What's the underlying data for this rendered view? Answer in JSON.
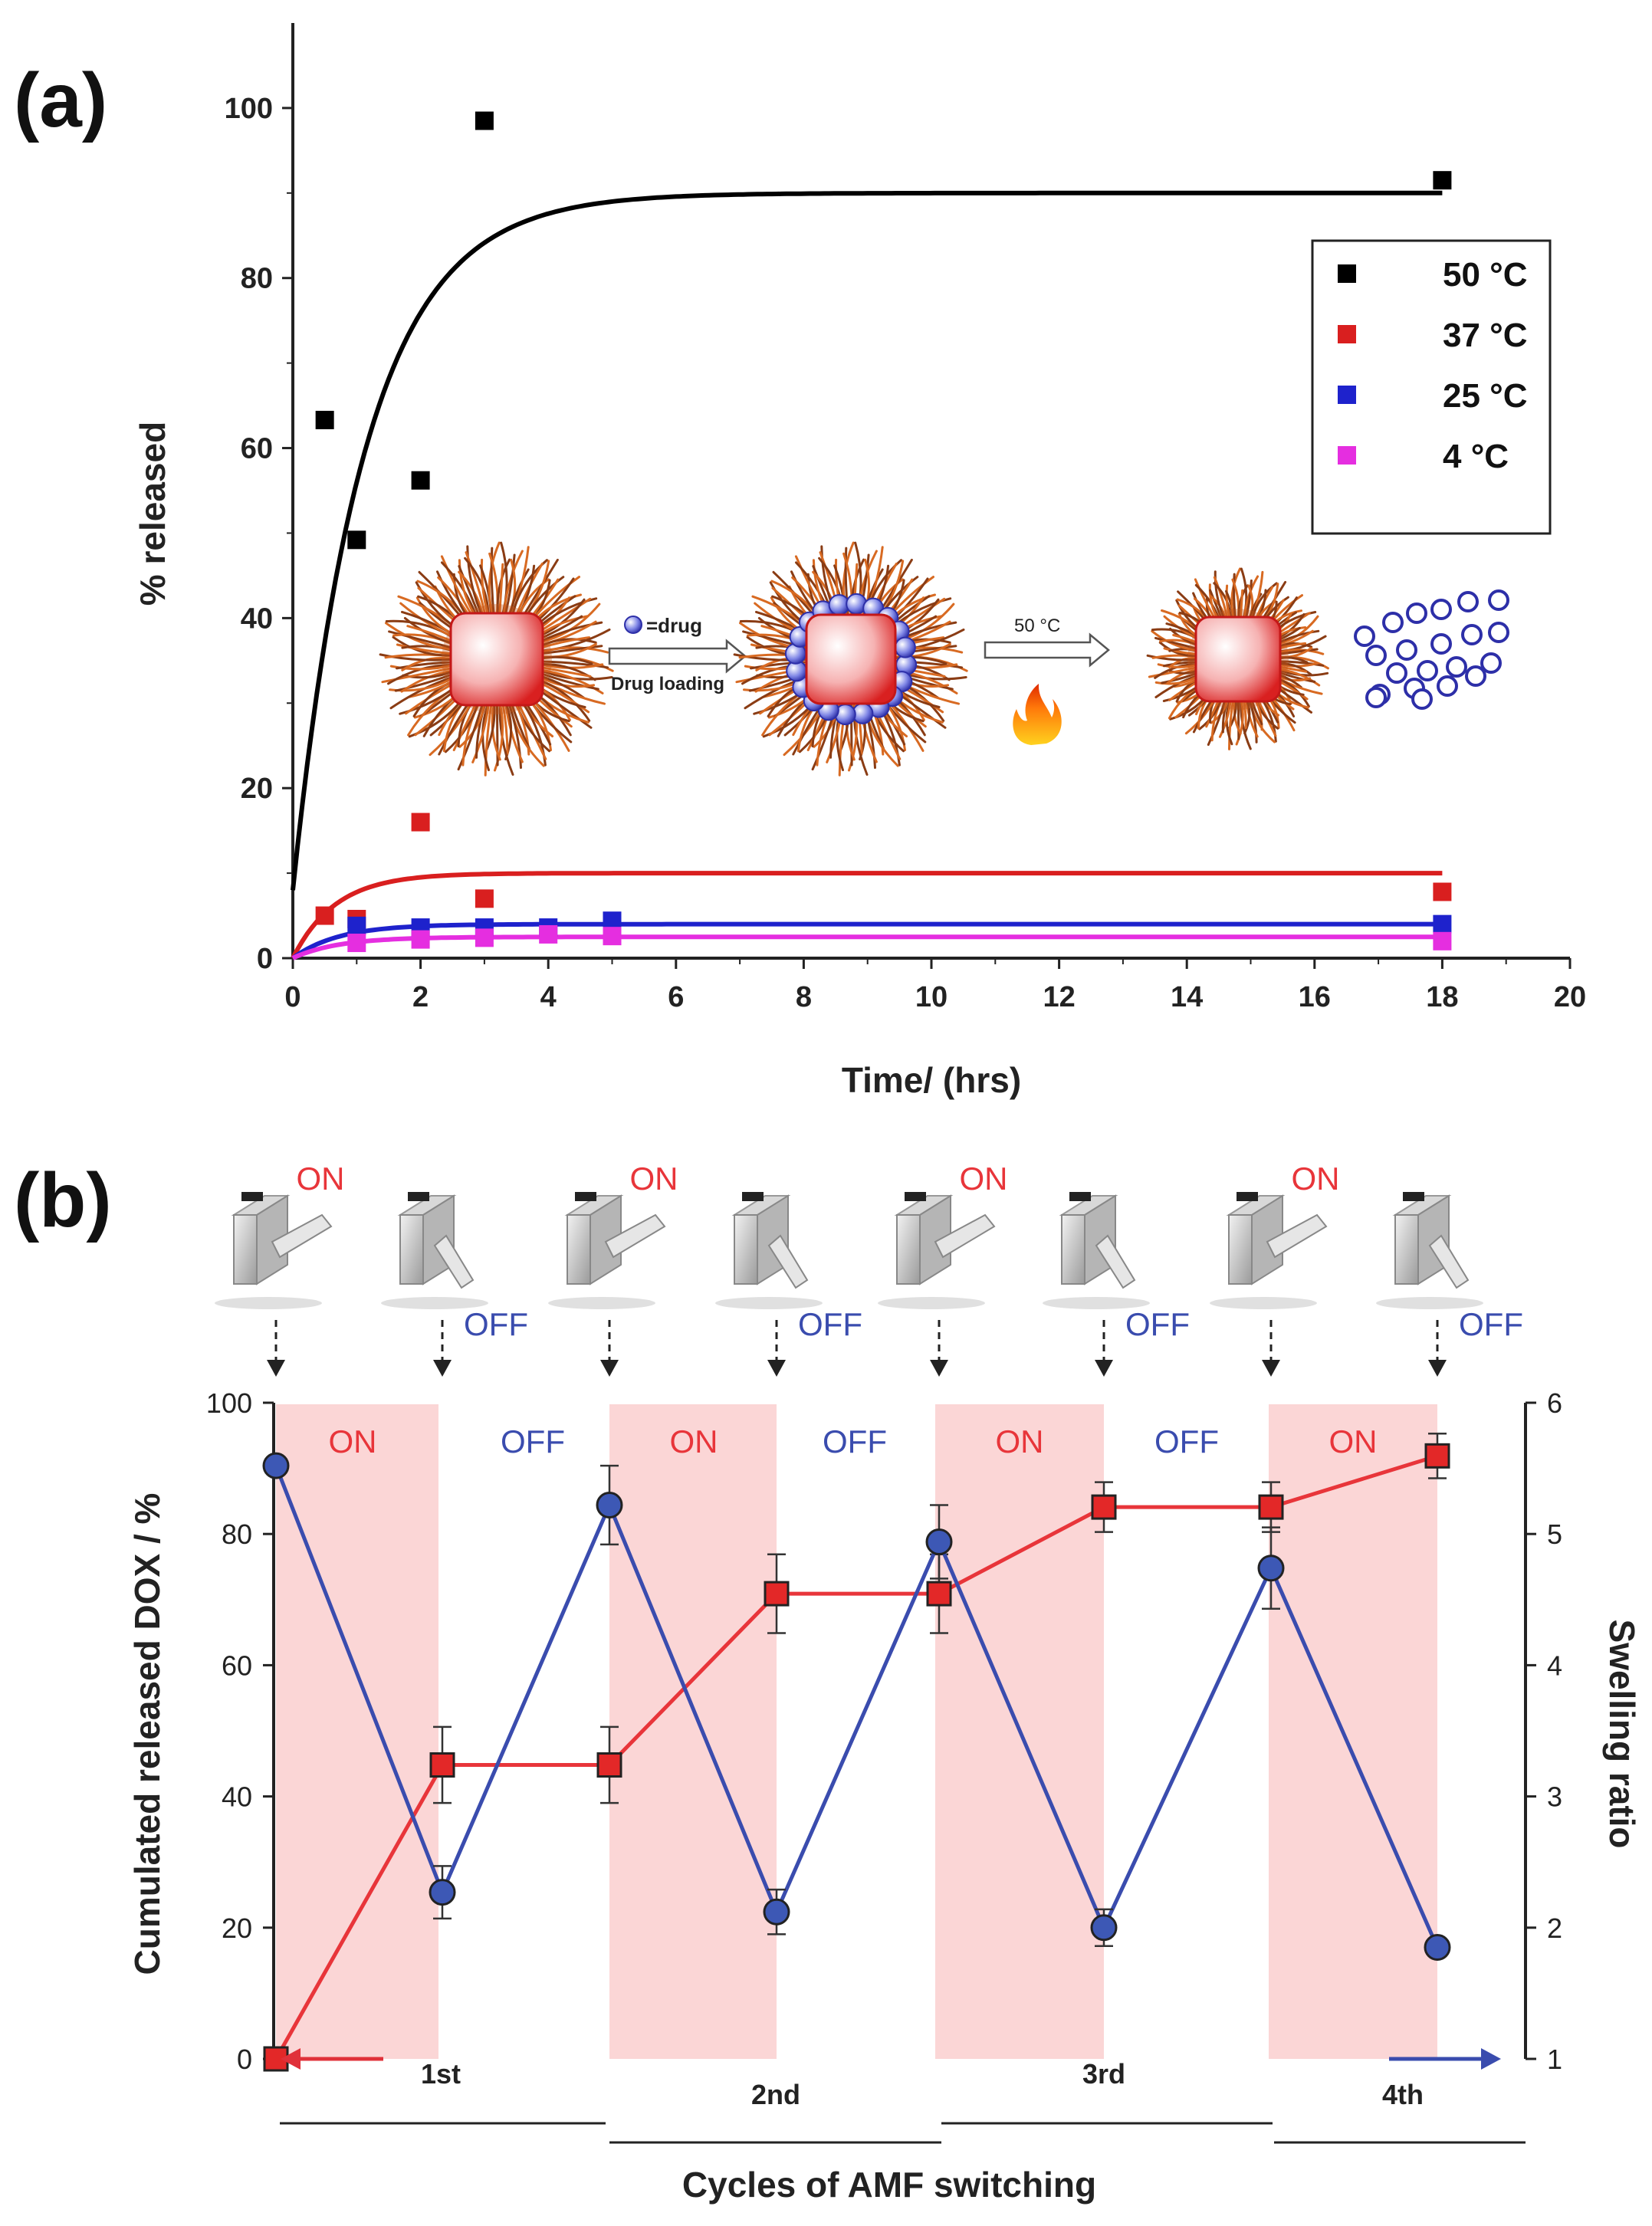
{
  "panel_a": {
    "label": "(a)",
    "legend": [
      {
        "name": "50 °C",
        "color": "#000000"
      },
      {
        "name": "37 °C",
        "color": "#d91f1f"
      },
      {
        "name": "25 °C",
        "color": "#1e22cc"
      },
      {
        "name": "4 °C",
        "color": "#e52ee0"
      }
    ],
    "inset": {
      "drug_label": "=drug",
      "step1_label": "Drug loading",
      "step2_label": "50 °C"
    }
  },
  "panel_b": {
    "label": "(b)",
    "switch_labels": [
      {
        "state": "on",
        "text": "ON"
      },
      {
        "state": "off",
        "text": "OFF"
      },
      {
        "state": "on",
        "text": "ON"
      },
      {
        "state": "off",
        "text": "OFF"
      },
      {
        "state": "on",
        "text": "ON"
      },
      {
        "state": "off",
        "text": "OFF"
      },
      {
        "state": "on",
        "text": "ON"
      },
      {
        "state": "off",
        "text": "OFF"
      }
    ],
    "band_labels": [
      "ON",
      "OFF",
      "ON",
      "OFF",
      "ON",
      "OFF",
      "ON"
    ],
    "cycles": [
      "1st",
      "2nd",
      "3rd",
      "4th"
    ],
    "colors": {
      "on": "#e8353a",
      "off": "#3a4cae",
      "band": "#fbd6d6"
    }
  },
  "chart_data": [
    {
      "type": "scatter",
      "title": "",
      "xlabel": "Time/ (hrs)",
      "ylabel": "% released",
      "xlim": [
        0,
        20
      ],
      "ylim": [
        0,
        110
      ],
      "xticks": [
        0,
        2,
        4,
        6,
        8,
        10,
        12,
        14,
        16,
        18,
        20
      ],
      "yticks": [
        0,
        20,
        40,
        60,
        80,
        100
      ],
      "series": [
        {
          "name": "50 °C",
          "color": "#000000",
          "points": [
            [
              0.5,
              63.3
            ],
            [
              1,
              49.2
            ],
            [
              2,
              56.2
            ],
            [
              3,
              98.5
            ],
            [
              18,
              91.5
            ]
          ],
          "fit": {
            "plateau": 90,
            "k": 0.88,
            "y0": 8,
            "xmax": 18
          }
        },
        {
          "name": "37 °C",
          "color": "#d91f1f",
          "points": [
            [
              0.5,
              5
            ],
            [
              1,
              4.6
            ],
            [
              2,
              16
            ],
            [
              3,
              7
            ],
            [
              18,
              7.8
            ]
          ],
          "fit": {
            "plateau": 10,
            "k": 1.5,
            "y0": 0,
            "xmax": 18
          }
        },
        {
          "name": "25 °C",
          "color": "#1e22cc",
          "points": [
            [
              1,
              3.8
            ],
            [
              2,
              3.6
            ],
            [
              3,
              3.6
            ],
            [
              4,
              3.6
            ],
            [
              5,
              4.4
            ],
            [
              18,
              4
            ]
          ],
          "fit": {
            "plateau": 4,
            "k": 1.4,
            "y0": 0,
            "xmax": 18
          }
        },
        {
          "name": "4 °C",
          "color": "#e52ee0",
          "points": [
            [
              1,
              1.8
            ],
            [
              2,
              2.2
            ],
            [
              3,
              2.4
            ],
            [
              4,
              2.8
            ],
            [
              5,
              2.6
            ],
            [
              18,
              2
            ]
          ],
          "fit": {
            "plateau": 2.5,
            "k": 1.4,
            "y0": 0,
            "xmax": 18
          }
        }
      ]
    },
    {
      "type": "line",
      "title": "",
      "xlabel": "Cycles of AMF switching",
      "ylabel": "Cumulated released DOX / %",
      "y2label": "Swelling ratio",
      "x": [
        0,
        1,
        2,
        3,
        4,
        5,
        6,
        7
      ],
      "ylim": [
        0,
        100
      ],
      "y2lim": [
        1,
        6
      ],
      "yticks": [
        0,
        20,
        40,
        60,
        80,
        100
      ],
      "y2ticks": [
        1,
        2,
        3,
        4,
        5,
        6
      ],
      "series": [
        {
          "name": "Cumulated released DOX",
          "axis": "left",
          "color": "#e8353a",
          "marker": "square",
          "values": [
            0,
            44.8,
            44.8,
            70.9,
            70.9,
            84.1,
            84.1,
            91.9
          ],
          "errors": [
            0,
            5.8,
            5.8,
            6,
            6,
            3.8,
            3.8,
            3.4
          ]
        },
        {
          "name": "Swelling ratio",
          "axis": "right",
          "color": "#3a4cae",
          "marker": "circle",
          "values": [
            5.52,
            2.27,
            5.22,
            2.12,
            4.94,
            2.0,
            4.74,
            1.85
          ],
          "errors": [
            0,
            0.2,
            0.3,
            0.17,
            0.28,
            0.14,
            0.31,
            0
          ]
        }
      ]
    }
  ]
}
